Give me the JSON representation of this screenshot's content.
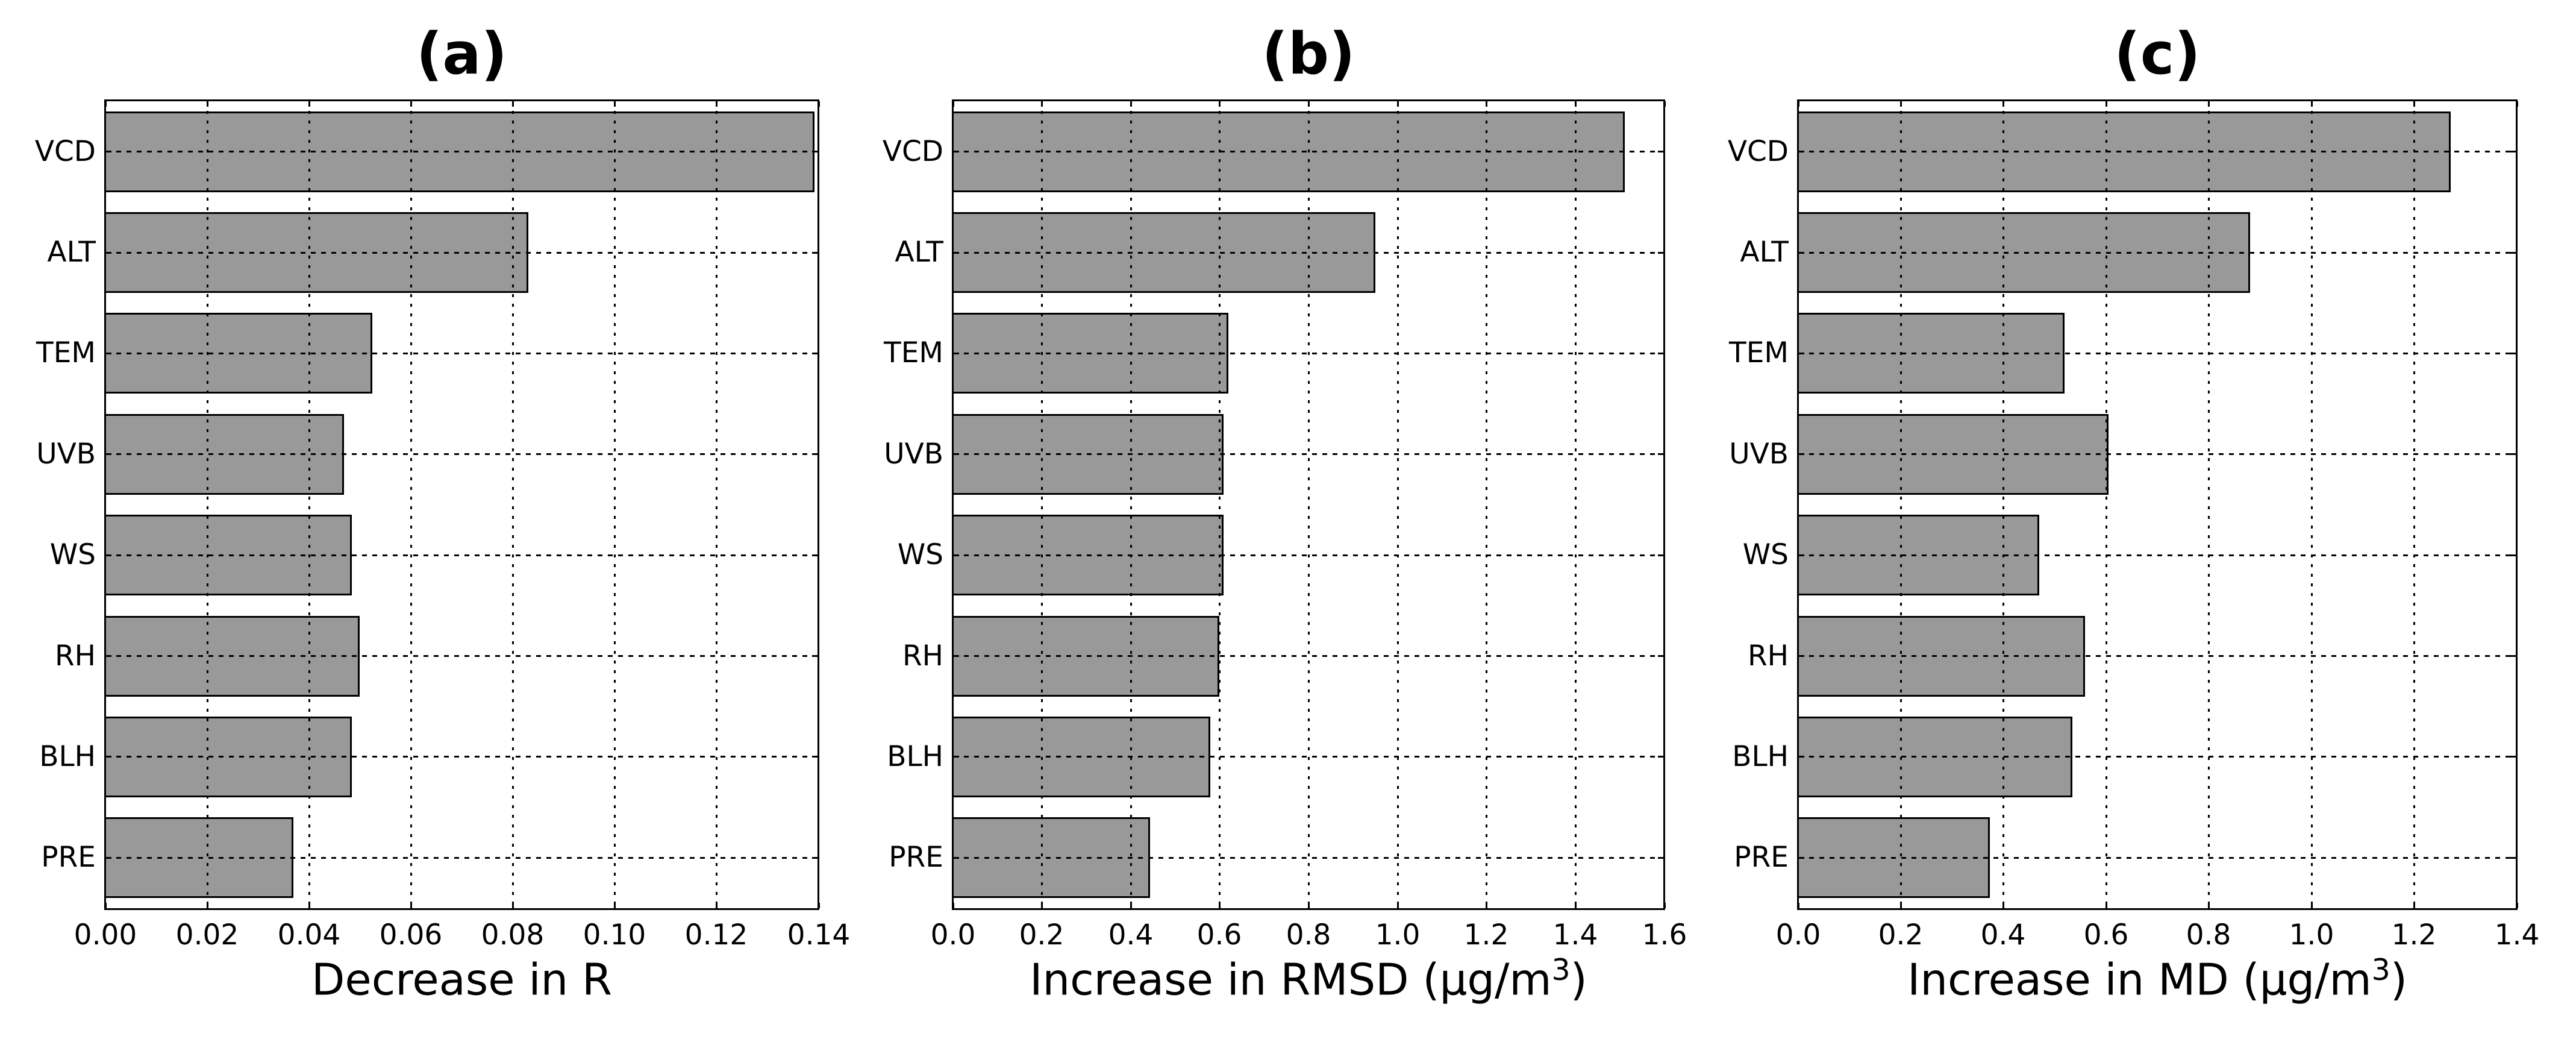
{
  "figure": {
    "background": "#ffffff",
    "bar_fill": "#999999",
    "bar_edge": "#000000",
    "text_color": "#000000",
    "grid_color": "#000000",
    "grid_style": "dotted"
  },
  "chart_data": [
    {
      "type": "bar",
      "orientation": "horizontal",
      "title": "(a)",
      "categories": [
        "VCD",
        "ALT",
        "TEM",
        "UVB",
        "WS",
        "RH",
        "BLH",
        "PRE"
      ],
      "values": [
        0.139,
        0.083,
        0.0525,
        0.047,
        0.0485,
        0.05,
        0.0485,
        0.037
      ],
      "xlabel": "Decrease in R",
      "xlabel_pre": "Decrease in R",
      "xlabel_sup": "",
      "xlabel_post": "",
      "ylabel": "",
      "xlim": [
        0,
        0.14
      ],
      "xtick_values": [
        0,
        0.02,
        0.04,
        0.06,
        0.08,
        0.1,
        0.12,
        0.14
      ],
      "xticks": [
        "0.00",
        "0.02",
        "0.04",
        "0.06",
        "0.08",
        "0.10",
        "0.12",
        "0.14"
      ],
      "grid": true,
      "legend": false
    },
    {
      "type": "bar",
      "orientation": "horizontal",
      "title": "(b)",
      "categories": [
        "VCD",
        "ALT",
        "TEM",
        "UVB",
        "WS",
        "RH",
        "BLH",
        "PRE"
      ],
      "values": [
        1.51,
        0.95,
        0.62,
        0.61,
        0.61,
        0.6,
        0.58,
        0.445
      ],
      "xlabel": "Increase in RMSD (μg/m³)",
      "xlabel_pre": "Increase in RMSD (μg/m",
      "xlabel_sup": "3",
      "xlabel_post": ")",
      "ylabel": "",
      "xlim": [
        0,
        1.6
      ],
      "xtick_values": [
        0,
        0.2,
        0.4,
        0.6,
        0.8,
        1.0,
        1.2,
        1.4,
        1.6
      ],
      "xticks": [
        "0.0",
        "0.2",
        "0.4",
        "0.6",
        "0.8",
        "1.0",
        "1.2",
        "1.4",
        "1.6"
      ],
      "grid": true,
      "legend": false
    },
    {
      "type": "bar",
      "orientation": "horizontal",
      "title": "(c)",
      "categories": [
        "VCD",
        "ALT",
        "TEM",
        "UVB",
        "WS",
        "RH",
        "BLH",
        "PRE"
      ],
      "values": [
        1.27,
        0.88,
        0.52,
        0.605,
        0.47,
        0.56,
        0.535,
        0.375
      ],
      "xlabel": "Increase in MD (μg/m³)",
      "xlabel_pre": "Increase in MD (μg/m",
      "xlabel_sup": "3",
      "xlabel_post": ")",
      "ylabel": "",
      "xlim": [
        0,
        1.4
      ],
      "xtick_values": [
        0,
        0.2,
        0.4,
        0.6,
        0.8,
        1.0,
        1.2,
        1.4
      ],
      "xticks": [
        "0.0",
        "0.2",
        "0.4",
        "0.6",
        "0.8",
        "1.0",
        "1.2",
        "1.4"
      ],
      "grid": true,
      "legend": false
    }
  ]
}
